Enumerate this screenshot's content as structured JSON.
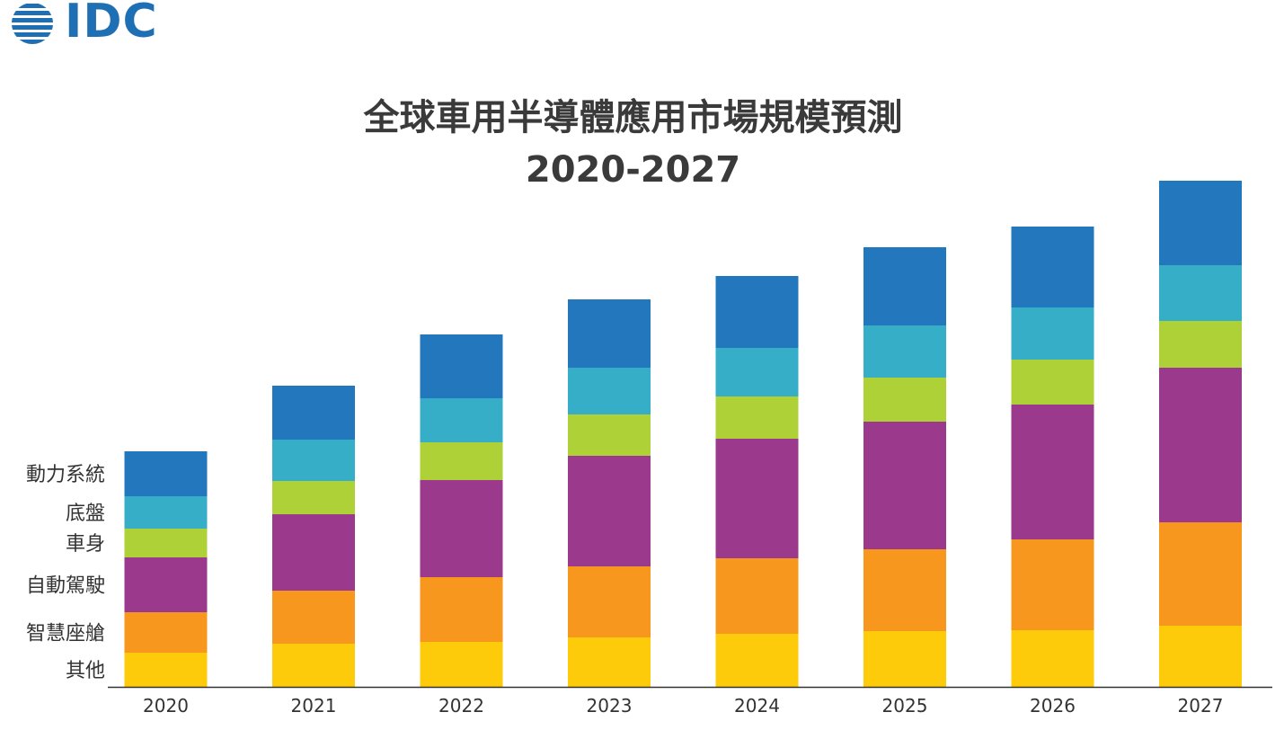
{
  "brand": {
    "name": "IDC",
    "color": "#1f6fb5"
  },
  "chart_data": {
    "type": "bar",
    "stacked": true,
    "title": "全球車用半導體應用市場規模預測",
    "subtitle": "2020-2027",
    "categories": [
      "2020",
      "2021",
      "2022",
      "2023",
      "2024",
      "2025",
      "2026",
      "2027"
    ],
    "series": [
      {
        "name": "其他",
        "color": "#fecb0a",
        "values": [
          38,
          48,
          50,
          55,
          59,
          62,
          63,
          68
        ]
      },
      {
        "name": "智慧座艙",
        "color": "#f7971e",
        "values": [
          45,
          59,
          72,
          79,
          84,
          91,
          101,
          115
        ]
      },
      {
        "name": "自動駕駛",
        "color": "#9b3a8c",
        "values": [
          61,
          85,
          108,
          123,
          133,
          142,
          150,
          172
        ]
      },
      {
        "name": "車身",
        "color": "#add136",
        "values": [
          32,
          37,
          42,
          46,
          47,
          49,
          50,
          52
        ]
      },
      {
        "name": "底盤",
        "color": "#37aec8",
        "values": [
          36,
          46,
          49,
          52,
          54,
          58,
          58,
          62
        ]
      },
      {
        "name": "動力系統",
        "color": "#2378bd",
        "values": [
          50,
          60,
          71,
          76,
          80,
          87,
          90,
          94
        ]
      }
    ],
    "legend": "left",
    "grid": false
  }
}
